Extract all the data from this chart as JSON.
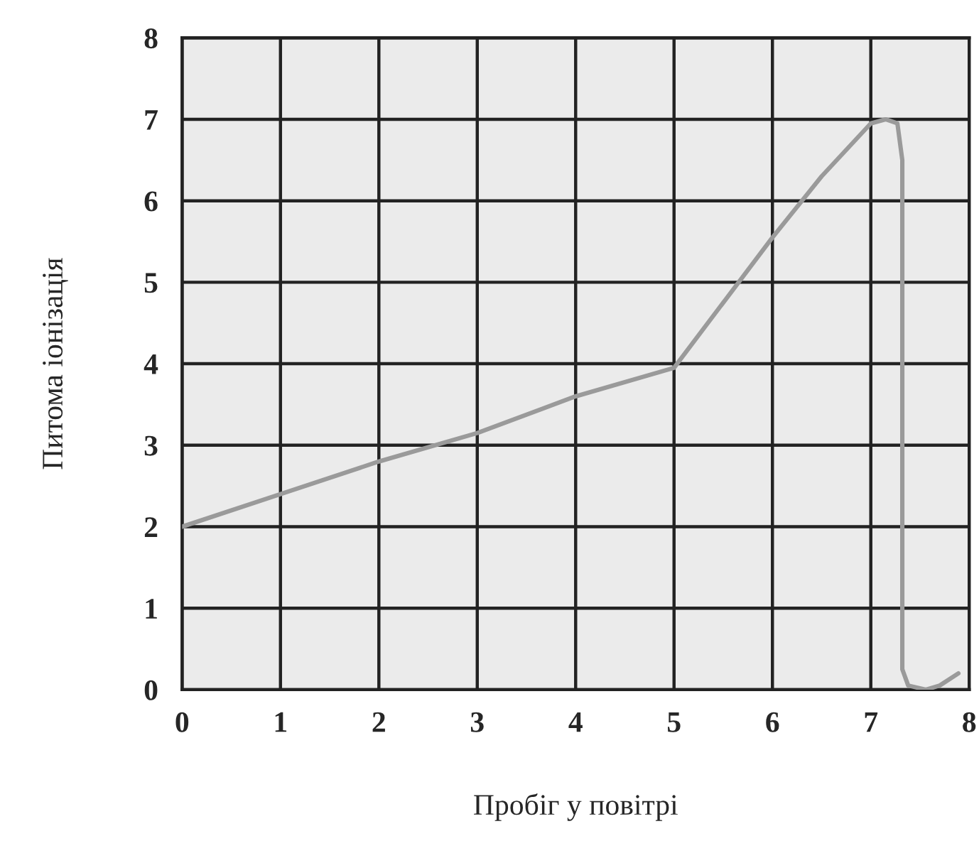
{
  "chart_data": {
    "type": "line",
    "xlabel": "Пробіг у повітрі",
    "ylabel": "Питома іонізація",
    "x": [
      0,
      1,
      2,
      3,
      4,
      5,
      5.5,
      6,
      6.5,
      7,
      7.15,
      7.27,
      7.32,
      7.32,
      7.32,
      7.38,
      7.56,
      7.7,
      7.89
    ],
    "series": [
      {
        "color": "#9a9a9a",
        "values": [
          2,
          2.4,
          2.8,
          3.15,
          3.6,
          3.95,
          4.75,
          5.55,
          6.3,
          6.95,
          7.0,
          6.95,
          6.5,
          1,
          0.25,
          0.05,
          0,
          0.05,
          0.2
        ]
      }
    ],
    "xlim": [
      0,
      8
    ],
    "ylim": [
      0,
      8
    ],
    "xticks": [
      0,
      1,
      2,
      3,
      4,
      5,
      6,
      7,
      8
    ],
    "yticks": [
      0,
      1,
      2,
      3,
      4,
      5,
      6,
      7,
      8
    ],
    "grid": true,
    "marker": "none",
    "line_style": "solid"
  }
}
